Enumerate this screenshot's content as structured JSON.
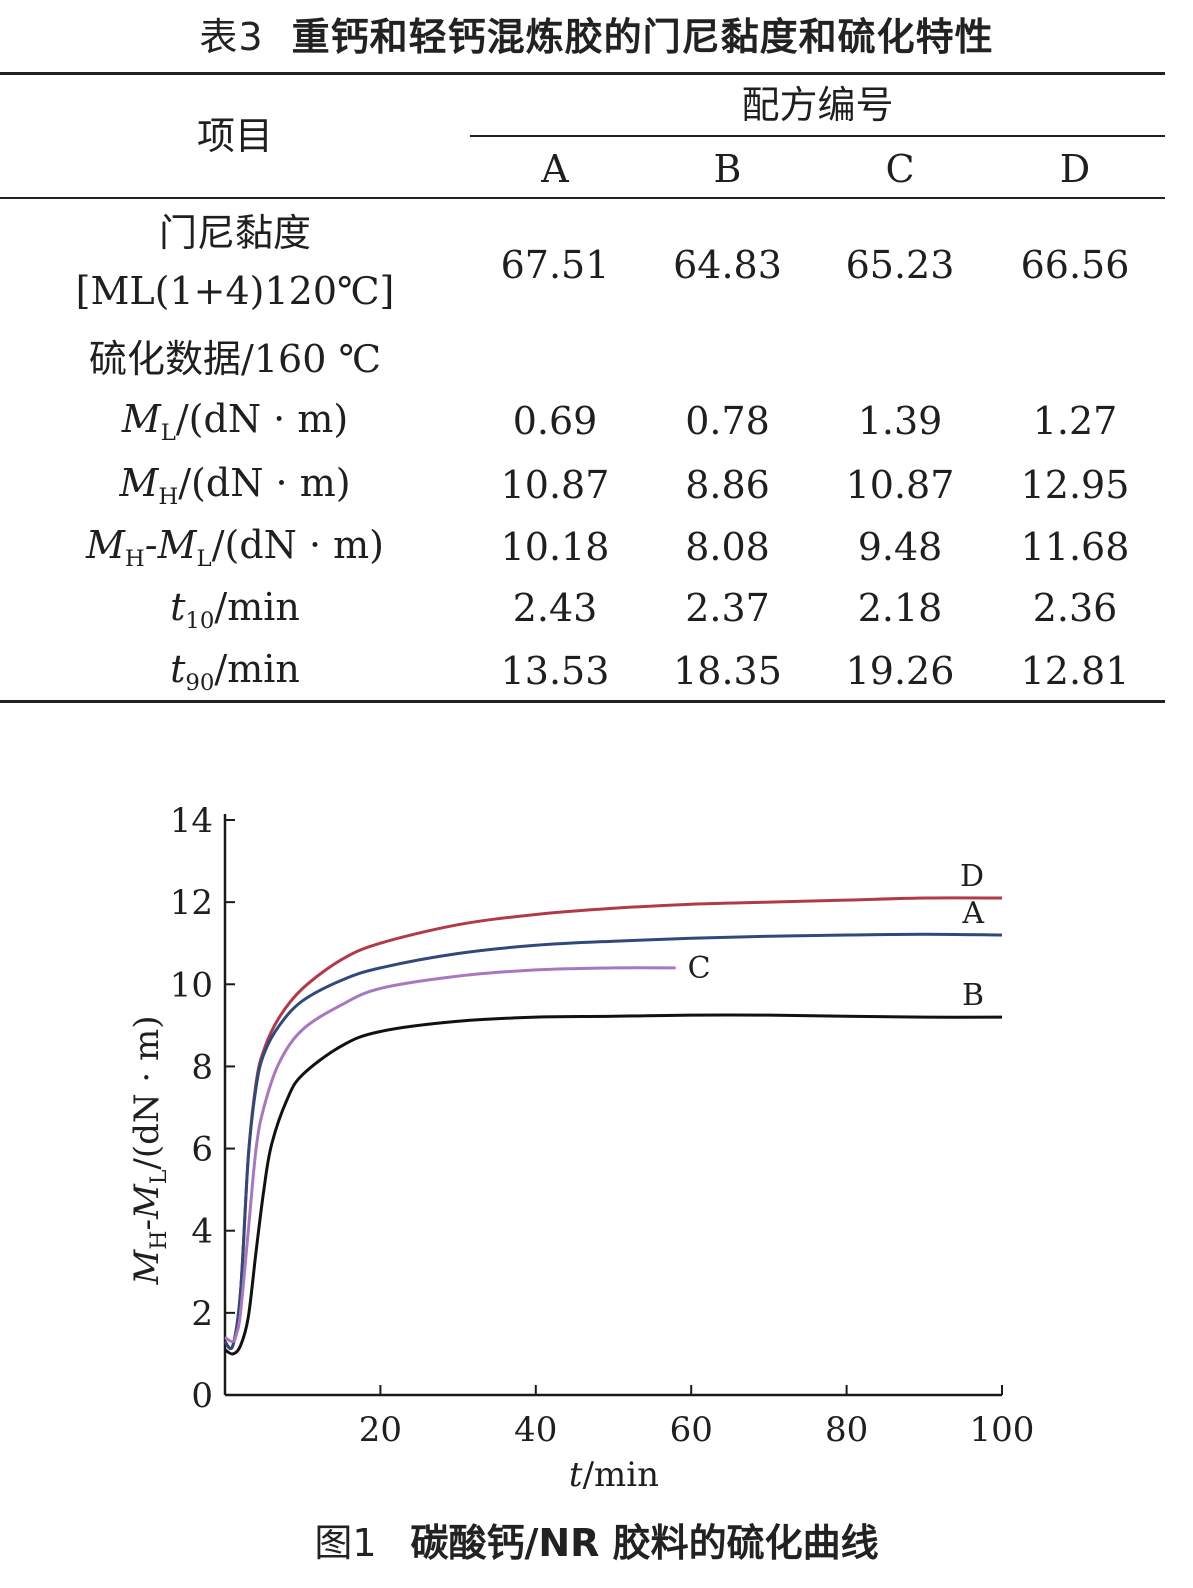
{
  "table": {
    "number": "表3",
    "title": "重钙和轻钙混炼胶的门尼黏度和硫化特性",
    "header_item": "项目",
    "header_group": "配方编号",
    "columns": [
      "A",
      "B",
      "C",
      "D"
    ],
    "rows": [
      {
        "label_line1": "门尼黏度",
        "label_line2": "[ML(1+4)120℃]",
        "values": [
          "67.51",
          "64.83",
          "65.23",
          "66.56"
        ]
      },
      {
        "label": "硫化数据/160 ℃",
        "values": []
      },
      {
        "label_var": "M",
        "label_sub": "L",
        "label_unit": "/(dN · m)",
        "values": [
          "0.69",
          "0.78",
          "1.39",
          "1.27"
        ]
      },
      {
        "label_var": "M",
        "label_sub": "H",
        "label_unit": "/(dN · m)",
        "values": [
          "10.87",
          "8.86",
          "10.87",
          "12.95"
        ]
      },
      {
        "label_var": "M",
        "label_sub": "H",
        "label_mid": "-M",
        "label_sub2": "L",
        "label_unit": "/(dN · m)",
        "values": [
          "10.18",
          "8.08",
          "9.48",
          "11.68"
        ]
      },
      {
        "label_var": "t",
        "label_sub": "10",
        "label_unit": "/min",
        "values": [
          "2.43",
          "2.37",
          "2.18",
          "2.36"
        ]
      },
      {
        "label_var": "t",
        "label_sub": "90",
        "label_unit": "/min",
        "values": [
          "13.53",
          "18.35",
          "19.26",
          "12.81"
        ]
      }
    ]
  },
  "figure": {
    "number": "图1",
    "caption": "碳酸钙/NR 胶料的硫化曲线"
  },
  "chart_data": {
    "type": "line",
    "xlabel_var": "t",
    "xlabel_unit": "/min",
    "ylabel_var1": "M",
    "ylabel_sub1": "H",
    "ylabel_mid": "-M",
    "ylabel_sub2": "L",
    "ylabel_unit": "/(dN · m)",
    "xlim": [
      0,
      100
    ],
    "ylim": [
      0,
      14
    ],
    "xticks": [
      20,
      40,
      60,
      80,
      100
    ],
    "yticks": [
      0,
      2,
      4,
      6,
      8,
      10,
      12,
      14
    ],
    "grid": false,
    "legend": "inline labels at line ends",
    "series": [
      {
        "name": "D",
        "color": "#b23a48",
        "x": [
          0,
          1,
          2,
          3,
          4,
          5,
          7,
          10,
          15,
          20,
          30,
          40,
          50,
          60,
          70,
          80,
          90,
          100
        ],
        "y": [
          1.3,
          1.2,
          2.5,
          5.8,
          7.6,
          8.4,
          9.2,
          9.9,
          10.6,
          11.0,
          11.45,
          11.7,
          11.85,
          11.95,
          12.0,
          12.05,
          12.1,
          12.1
        ]
      },
      {
        "name": "A",
        "color": "#2f4a7a",
        "x": [
          0,
          1,
          2,
          3,
          4,
          5,
          7,
          10,
          15,
          20,
          30,
          40,
          50,
          60,
          70,
          80,
          90,
          100
        ],
        "y": [
          1.3,
          1.2,
          2.5,
          5.8,
          7.5,
          8.3,
          9.0,
          9.6,
          10.1,
          10.4,
          10.75,
          10.95,
          11.05,
          11.12,
          11.17,
          11.2,
          11.22,
          11.2
        ]
      },
      {
        "name": "C",
        "color": "#a877c0",
        "x": [
          0,
          1,
          1.5,
          2,
          3,
          4,
          5,
          7,
          10,
          15,
          20,
          30,
          40,
          50,
          58
        ],
        "y": [
          1.4,
          1.3,
          1.5,
          2.0,
          4.0,
          6.0,
          7.0,
          8.1,
          8.9,
          9.5,
          9.9,
          10.2,
          10.35,
          10.4,
          10.4
        ]
      },
      {
        "name": "B",
        "color": "#111111",
        "x": [
          0,
          1,
          2,
          3,
          4,
          5,
          6,
          8,
          10,
          15,
          20,
          30,
          40,
          50,
          60,
          70,
          80,
          90,
          100
        ],
        "y": [
          1.1,
          1.0,
          1.2,
          1.9,
          3.5,
          5.0,
          6.1,
          7.2,
          7.8,
          8.5,
          8.85,
          9.1,
          9.2,
          9.22,
          9.25,
          9.25,
          9.22,
          9.2,
          9.2
        ]
      }
    ]
  }
}
